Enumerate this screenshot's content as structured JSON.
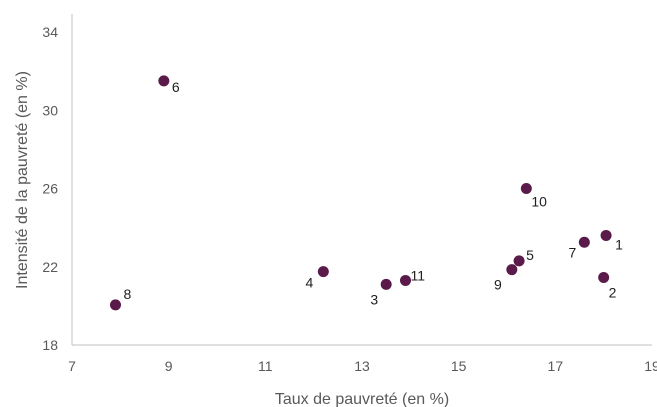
{
  "chart_data": {
    "type": "scatter",
    "title": "",
    "xlabel": "Taux de pauvreté (en %)",
    "ylabel": "Intensité de la pauvreté (en %)",
    "xlim": [
      7,
      19
    ],
    "ylim": [
      18,
      34
    ],
    "xticks": [
      7,
      9,
      11,
      13,
      15,
      17,
      19
    ],
    "yticks": [
      18,
      22,
      26,
      30,
      34
    ],
    "grid": false,
    "marker_color": "#5a1a4a",
    "points": [
      {
        "label": "1",
        "x": 18.05,
        "y": 23.6
      },
      {
        "label": "2",
        "x": 18.0,
        "y": 21.45
      },
      {
        "label": "3",
        "x": 13.5,
        "y": 21.1
      },
      {
        "label": "4",
        "x": 12.2,
        "y": 21.75
      },
      {
        "label": "5",
        "x": 16.25,
        "y": 22.3
      },
      {
        "label": "6",
        "x": 8.9,
        "y": 31.5
      },
      {
        "label": "7",
        "x": 17.6,
        "y": 23.25
      },
      {
        "label": "8",
        "x": 7.9,
        "y": 20.05
      },
      {
        "label": "9",
        "x": 16.1,
        "y": 21.85
      },
      {
        "label": "10",
        "x": 16.4,
        "y": 26.0
      },
      {
        "label": "11",
        "x": 13.9,
        "y": 21.3
      }
    ]
  }
}
